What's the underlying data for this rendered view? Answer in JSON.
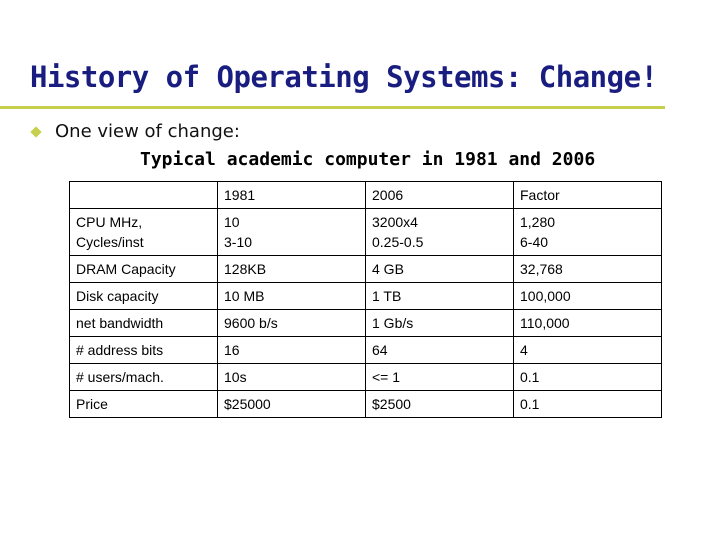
{
  "title": "History of Operating Systems: Change!",
  "bullet": "One view of change:",
  "subheading": "Typical academic computer in 1981 and 2006",
  "table": {
    "header": [
      "",
      "1981",
      "2006",
      "Factor"
    ],
    "rows": [
      {
        "label": [
          "CPU MHz,",
          "Cycles/inst"
        ],
        "y1981": [
          "10",
          "3-10"
        ],
        "y2006": [
          "3200x4",
          "0.25-0.5"
        ],
        "factor": [
          "1,280",
          "6-40"
        ]
      },
      {
        "label": [
          "DRAM Capacity"
        ],
        "y1981": [
          "128KB"
        ],
        "y2006": [
          "4 GB"
        ],
        "factor": [
          "32,768"
        ]
      },
      {
        "label": [
          "Disk capacity"
        ],
        "y1981": [
          "10 MB"
        ],
        "y2006": [
          "1 TB"
        ],
        "factor": [
          "100,000"
        ]
      },
      {
        "label": [
          "net bandwidth"
        ],
        "y1981": [
          "9600 b/s"
        ],
        "y2006": [
          "1 Gb/s"
        ],
        "factor": [
          "110,000"
        ]
      },
      {
        "label": [
          "# address bits"
        ],
        "y1981": [
          "16"
        ],
        "y2006": [
          "64"
        ],
        "factor": [
          "4"
        ]
      },
      {
        "label": [
          "# users/mach."
        ],
        "y1981": [
          "10s"
        ],
        "y2006": [
          "<= 1"
        ],
        "factor": [
          "0.1"
        ]
      },
      {
        "label": [
          "Price"
        ],
        "y1981": [
          "$25000"
        ],
        "y2006": [
          "$2500"
        ],
        "factor": [
          "0.1"
        ]
      }
    ]
  },
  "colors": {
    "title": "#1a1d80",
    "accent": "#c6d04c"
  },
  "icons": {
    "bullet": "diamond-bullet-icon"
  }
}
